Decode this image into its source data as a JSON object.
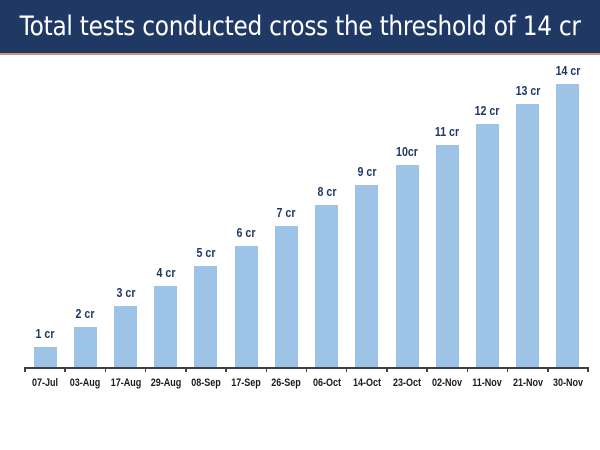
{
  "header": {
    "title": "Total tests conducted cross the threshold of 14 cr"
  },
  "colors": {
    "header_bg": "#1f3864",
    "header_border": "#c89a74",
    "bar": "#9dc3e6",
    "data_label": "#1f3864",
    "axis": "#404040"
  },
  "chart_data": {
    "type": "bar",
    "title": "Total tests conducted cross the threshold of 14 cr",
    "xlabel": "",
    "ylabel": "",
    "unit": "crore tests (cumulative)",
    "categories": [
      "07-Jul",
      "03-Aug",
      "17-Aug",
      "29-Aug",
      "08-Sep",
      "17-Sep",
      "26-Sep",
      "06-Oct",
      "14-Oct",
      "23-Oct",
      "02-Nov",
      "11-Nov",
      "21-Nov",
      "30-Nov"
    ],
    "values": [
      1,
      2,
      3,
      4,
      5,
      6,
      7,
      8,
      9,
      10,
      11,
      12,
      13,
      14
    ],
    "data_labels": [
      "1 cr",
      "2 cr",
      "3 cr",
      "4 cr",
      "5 cr",
      "6 cr",
      "7 cr",
      "8 cr",
      "9 cr",
      "10cr",
      "11 cr",
      "12 cr",
      "13 cr",
      "14 cr"
    ],
    "ylim": [
      0,
      14
    ],
    "grid": false,
    "legend": null,
    "y_axis_visible": false
  }
}
